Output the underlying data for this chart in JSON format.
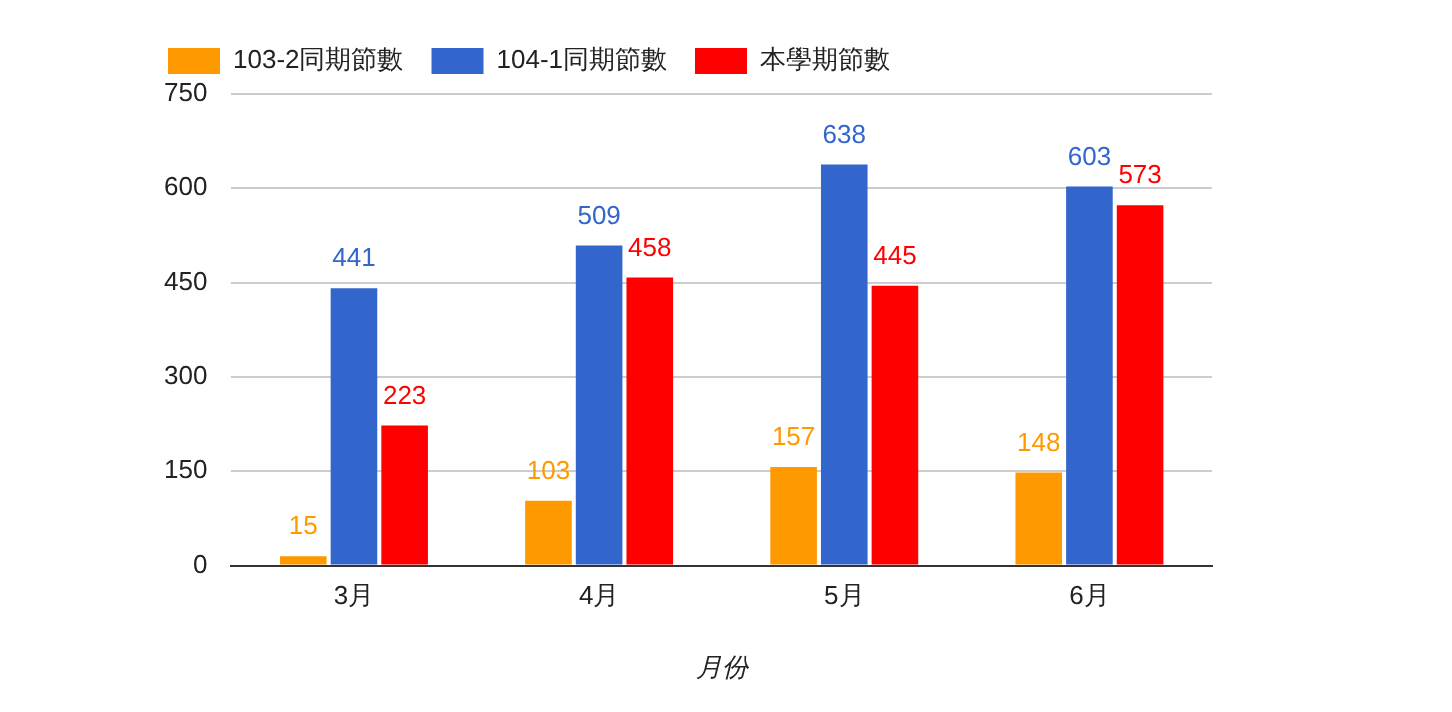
{
  "chart_data": {
    "type": "bar",
    "categories": [
      "3月",
      "4月",
      "5月",
      "6月"
    ],
    "series": [
      {
        "name": "103-2同期節數",
        "color": "#ff9900",
        "values": [
          15,
          103,
          157,
          148
        ]
      },
      {
        "name": "104-1同期節數",
        "color": "#3366cc",
        "values": [
          441,
          509,
          638,
          603
        ]
      },
      {
        "name": "本學期節數",
        "color": "#ff0000",
        "values": [
          223,
          458,
          445,
          573
        ]
      }
    ],
    "xlabel": "月份",
    "ylim": [
      0,
      750
    ],
    "yticks": [
      0,
      150,
      300,
      450,
      600,
      750
    ],
    "grid": "y",
    "legend": "top left",
    "data_labels": true
  }
}
